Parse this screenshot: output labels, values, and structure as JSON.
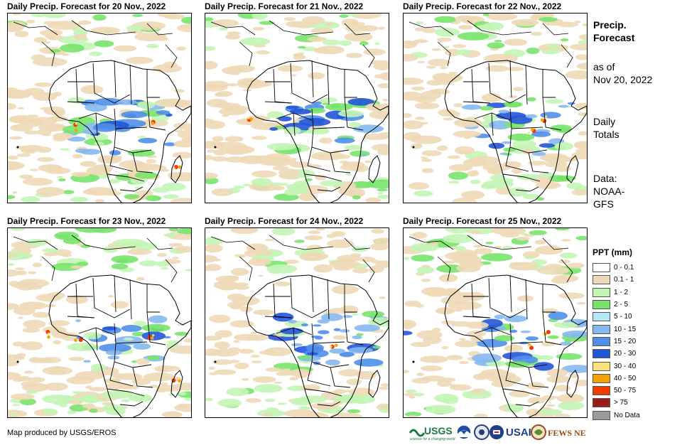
{
  "panels": [
    {
      "title": "Daily Precip. Forecast for 20 Nov., 2022",
      "day": 20
    },
    {
      "title": "Daily Precip. Forecast for 21 Nov., 2022",
      "day": 21
    },
    {
      "title": "Daily Precip. Forecast for 22 Nov., 2022",
      "day": 22
    },
    {
      "title": "Daily Precip. Forecast for 23 Nov., 2022",
      "day": 23
    },
    {
      "title": "Daily Precip. Forecast for 24 Nov., 2022",
      "day": 24
    },
    {
      "title": "Daily Precip. Forecast for 25 Nov., 2022",
      "day": 25
    }
  ],
  "side": {
    "title_line1": "Precip.",
    "title_line2": "Forecast",
    "asof_line1": "as of",
    "asof_line2": "Nov 20, 2022",
    "totals_line1": "Daily",
    "totals_line2": "Totals",
    "data_line1": "Data:",
    "data_line2": "NOAA-",
    "data_line3": "GFS"
  },
  "legend": {
    "title": "PPT (mm)",
    "items": [
      {
        "label": "0 - 0.1",
        "color": "#ffffff"
      },
      {
        "label": "0.1 - 1",
        "color": "#eed9b7"
      },
      {
        "label": "1 - 2",
        "color": "#c3f5b5"
      },
      {
        "label": "2 - 5",
        "color": "#78e36a"
      },
      {
        "label": "5 - 10",
        "color": "#b4e8f5"
      },
      {
        "label": "10 - 15",
        "color": "#86b8f0"
      },
      {
        "label": "15 - 20",
        "color": "#4f8fe8"
      },
      {
        "label": "20 - 30",
        "color": "#2355d8"
      },
      {
        "label": "30 - 40",
        "color": "#f9e27b"
      },
      {
        "label": "40 - 50",
        "color": "#f5a300"
      },
      {
        "label": "50 - 75",
        "color": "#f03c00"
      },
      {
        "label": "> 75",
        "color": "#9b1b1b"
      },
      {
        "label": "No Data",
        "color": "#9a9a9a"
      }
    ]
  },
  "footer": {
    "credit": "Map produced by USGS/EROS"
  },
  "logos": {
    "usgs": "USGS",
    "usgs_tagline": "science for a changing world",
    "usaid": "USAID",
    "fewsnet": "FEWS NET"
  }
}
